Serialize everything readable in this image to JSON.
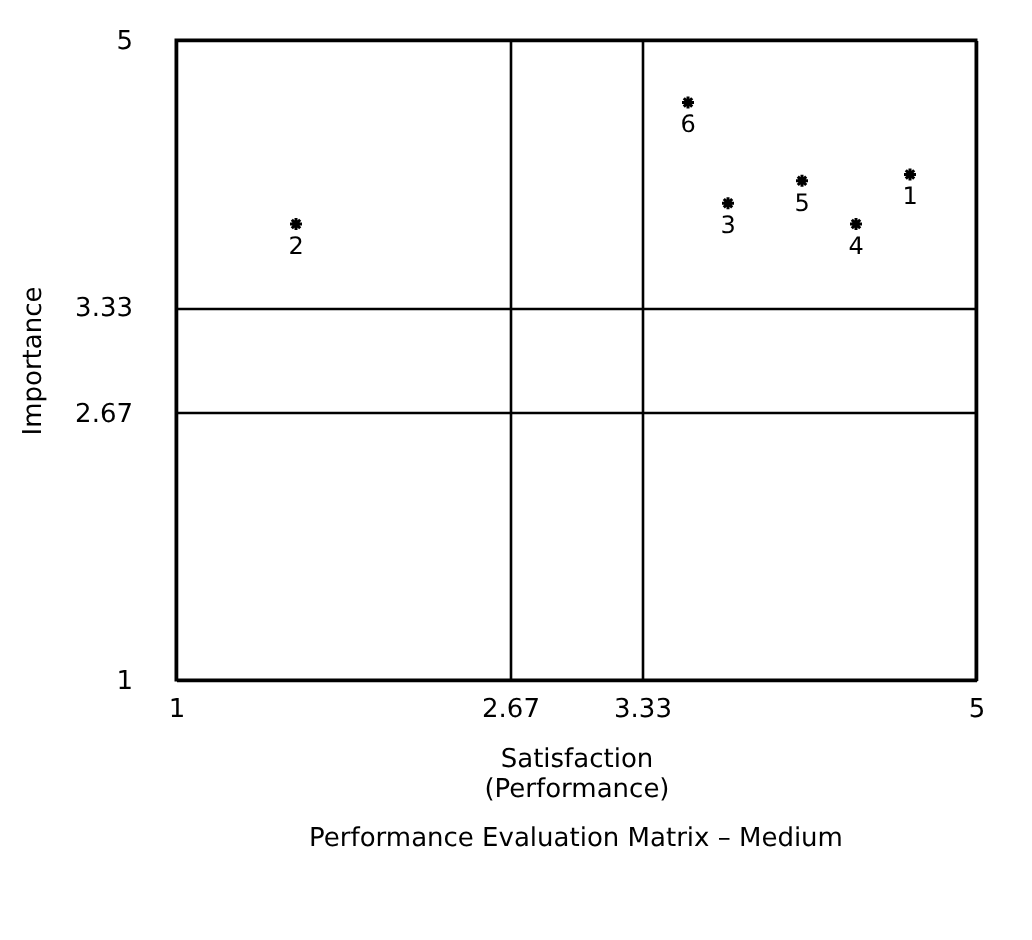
{
  "chart_data": {
    "type": "scatter",
    "title": "Performance Evaluation Matrix – Medium",
    "xlabel": "Satisfaction\n(Performance)",
    "ylabel": "Importance",
    "x": [
      4.67,
      1.6,
      3.76,
      4.4,
      4.13,
      3.56
    ],
    "values": [
      4.16,
      3.85,
      3.98,
      3.85,
      4.12,
      4.61
    ],
    "color": "#000000",
    "marker": "cross",
    "annotations": [
      {
        "text": "1",
        "x": 4.67,
        "y": 4.16
      },
      {
        "text": "2",
        "x": 1.6,
        "y": 3.85
      },
      {
        "text": "3",
        "x": 3.76,
        "y": 3.98
      },
      {
        "text": "4",
        "x": 4.4,
        "y": 3.85
      },
      {
        "text": "5",
        "x": 4.13,
        "y": 4.12
      },
      {
        "text": "6",
        "x": 3.56,
        "y": 4.61
      }
    ],
    "xlim": [
      1,
      5
    ],
    "ylim": [
      1,
      5
    ],
    "xticks": [
      1,
      2.67,
      3.33,
      5
    ],
    "yticks": [
      1,
      2.67,
      3.33,
      5
    ],
    "grid": true
  }
}
